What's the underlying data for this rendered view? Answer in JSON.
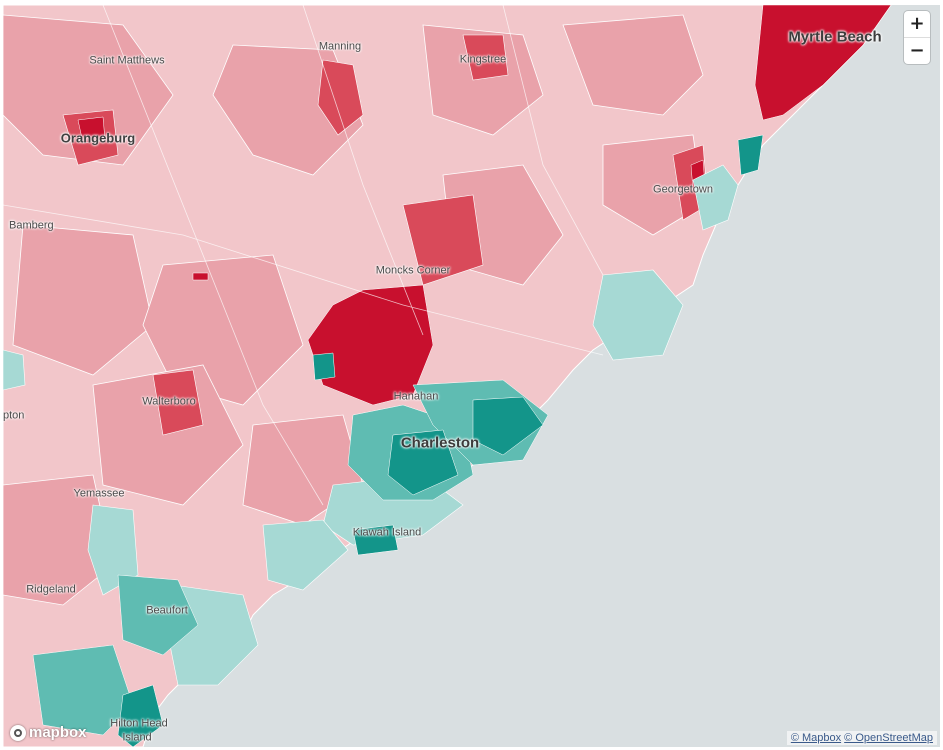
{
  "map": {
    "region": "South Carolina coast",
    "colors": {
      "water": "#d9dfe1",
      "land_light_red": "#f2c6ca",
      "land_mid_red": "#e9a2aa",
      "land_strong_red": "#d94a5a",
      "land_deep_red": "#c8102e",
      "land_light_teal": "#a6d9d4",
      "land_mid_teal": "#5fbcb2",
      "land_deep_teal": "#13958a",
      "boundary": "#ffffff"
    },
    "labels": [
      {
        "id": "myrtle-beach",
        "text": "Myrtle Beach",
        "size": "major"
      },
      {
        "id": "saint-matthews",
        "text": "Saint Matthews",
        "size": "minor"
      },
      {
        "id": "manning",
        "text": "Manning",
        "size": "minor"
      },
      {
        "id": "kingstree",
        "text": "Kingstree",
        "size": "minor"
      },
      {
        "id": "orangeburg",
        "text": "Orangeburg",
        "size": "medium"
      },
      {
        "id": "georgetown",
        "text": "Georgetown",
        "size": "minor"
      },
      {
        "id": "bamberg",
        "text": "Bamberg",
        "size": "minor"
      },
      {
        "id": "moncks-corner",
        "text": "Moncks Corner",
        "size": "minor"
      },
      {
        "id": "walterboro",
        "text": "Walterboro",
        "size": "minor"
      },
      {
        "id": "hanahan",
        "text": "Hanahan",
        "size": "minor"
      },
      {
        "id": "charleston",
        "text": "Charleston",
        "size": "major"
      },
      {
        "id": "pton",
        "text": "pton",
        "size": "minor"
      },
      {
        "id": "yemassee",
        "text": "Yemassee",
        "size": "minor"
      },
      {
        "id": "kiawah-island",
        "text": "Kiawah Island",
        "size": "minor"
      },
      {
        "id": "ridgeland",
        "text": "Ridgeland",
        "size": "minor"
      },
      {
        "id": "beaufort",
        "text": "Beaufort",
        "size": "minor"
      },
      {
        "id": "hilton-head-1",
        "text": "Hilton Head",
        "size": "minor"
      },
      {
        "id": "hilton-head-2",
        "text": "Island",
        "size": "minor"
      }
    ]
  },
  "controls": {
    "zoom_in": "+",
    "zoom_out": "−"
  },
  "logo": {
    "text": "mapbox"
  },
  "attribution": {
    "mapbox": "© Mapbox",
    "osm": "© OpenStreetMap"
  }
}
